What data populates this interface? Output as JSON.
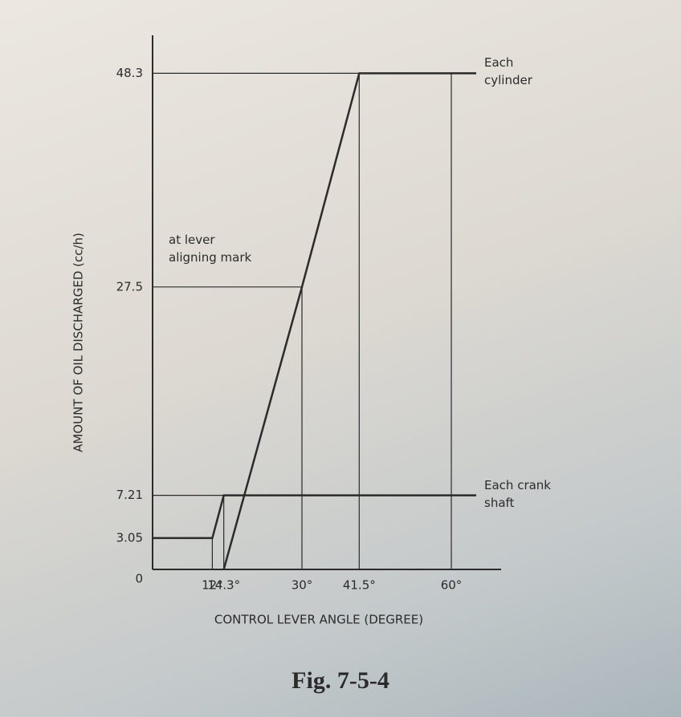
{
  "chart_data": {
    "type": "line",
    "title": "Fig. 7-5-4",
    "xlabel": "CONTROL LEVER ANGLE (DEGREE)",
    "ylabel": "AMOUNT OF OIL DISCHARGED (cc/h)",
    "annotation": "at lever aligning mark",
    "xlim": [
      0,
      70
    ],
    "ylim": [
      0,
      52
    ],
    "xticks": [
      {
        "value": 12,
        "label": "12°"
      },
      {
        "value": 14.3,
        "label": "14.3°"
      },
      {
        "value": 30,
        "label": "30°"
      },
      {
        "value": 41.5,
        "label": "41.5°"
      },
      {
        "value": 60,
        "label": "60°"
      }
    ],
    "yticks": [
      0,
      3.05,
      7.21,
      27.5,
      48.3
    ],
    "series": [
      {
        "name": "Each cylinder",
        "color": "#2b2b2b",
        "x": [
          14.3,
          30,
          41.5,
          65
        ],
        "values": [
          0,
          27.5,
          48.3,
          48.3
        ]
      },
      {
        "name": "Each crank shaft",
        "color": "#2b2b2b",
        "x": [
          0,
          12,
          14.3,
          65
        ],
        "values": [
          3.05,
          3.05,
          7.21,
          7.21
        ]
      }
    ]
  }
}
